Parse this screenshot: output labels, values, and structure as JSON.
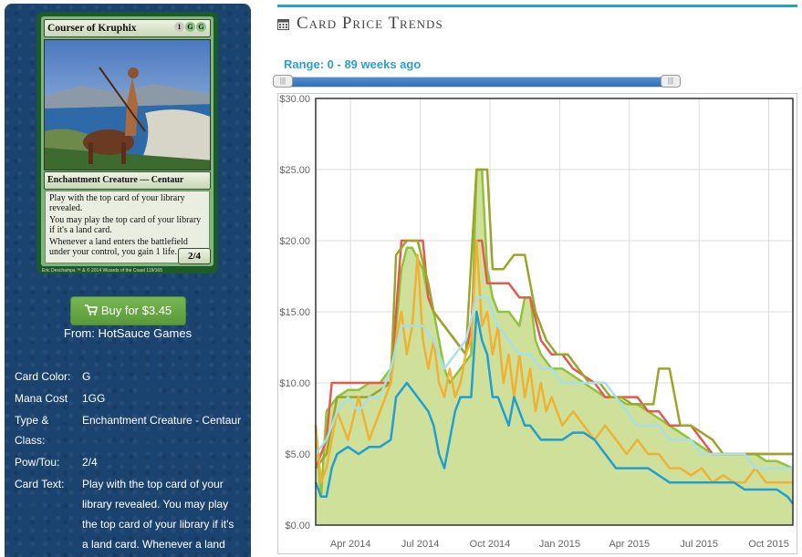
{
  "card": {
    "name": "Courser of Kruphix",
    "mana_symbols": [
      "1",
      "G",
      "G"
    ],
    "type_line": "Enchantment Creature — Centaur",
    "text_lines": [
      "Play with the top card of your library revealed.",
      "You may play the top card of your library if it's a land card.",
      "Whenever a land enters the battlefield under your control, you gain 1 life."
    ],
    "power_toughness": "2/4",
    "artist": "Eric Deschamps",
    "copyright": "™ & © 2014 Wizards of the Coast 119/165"
  },
  "buy": {
    "label": "Buy for $3.45",
    "vendor": "From: HotSauce Games"
  },
  "info": [
    {
      "label": "Card Color:",
      "value": "G"
    },
    {
      "label": "Mana Cost",
      "value": "1GG"
    },
    {
      "label": "Type & Class:",
      "value": "Enchantment Creature - Centaur"
    },
    {
      "label": "Pow/Tou:",
      "value": "2/4"
    },
    {
      "label": "Card Text:",
      "value": "Play with the top card of your library revealed. You may play the top card of your library if it's a land card. Whenever a land"
    }
  ],
  "section": {
    "title": "Card Price Trends",
    "icon": "calendar-icon"
  },
  "range": {
    "label": "Range: 0 - 89 weeks ago",
    "min_weeks": 0,
    "max_weeks": 89
  },
  "colors": {
    "panel_bg": "#1b4370",
    "accent": "#27a3c9",
    "range_text": "#2d9fd4",
    "button": "#6aa848",
    "area_fill": "#cfe09a"
  },
  "chart_data": {
    "type": "line",
    "title": "",
    "xlabel": "",
    "ylabel": "",
    "y_ticks": [
      "$0.00",
      "$5.00",
      "$10.00",
      "$15.00",
      "$20.00",
      "$25.00",
      "$30.00"
    ],
    "ylim": [
      0,
      30
    ],
    "x_ticks": [
      "Apr 2014",
      "Jul 2014",
      "Oct 2014",
      "Jan 2015",
      "Apr 2015",
      "Jul 2015",
      "Oct 2015"
    ],
    "x_tick_weeks": [
      4.5,
      17.5,
      30.5,
      43.5,
      56.5,
      69.5,
      82.5
    ],
    "xlim": [
      -2,
      87
    ],
    "grid": true,
    "series": [
      {
        "color": "#8fc33a",
        "fill": true,
        "points": [
          [
            -2,
            7
          ],
          [
            -1,
            2
          ],
          [
            0,
            8
          ],
          [
            2,
            9
          ],
          [
            4,
            9.5
          ],
          [
            6,
            9.5
          ],
          [
            8,
            10
          ],
          [
            10,
            10
          ],
          [
            12,
            11
          ],
          [
            13,
            14
          ],
          [
            14,
            18
          ],
          [
            15,
            19.5
          ],
          [
            16,
            19.5
          ],
          [
            18,
            18
          ],
          [
            19,
            16
          ],
          [
            20,
            15
          ],
          [
            21,
            13
          ],
          [
            22,
            11
          ],
          [
            23,
            10
          ],
          [
            24,
            10.5
          ],
          [
            25,
            11
          ],
          [
            26,
            11.5
          ],
          [
            27,
            12
          ],
          [
            28,
            25
          ],
          [
            29,
            25
          ],
          [
            30,
            18
          ],
          [
            31,
            16
          ],
          [
            32,
            15
          ],
          [
            34,
            15
          ],
          [
            36,
            14
          ],
          [
            37,
            16
          ],
          [
            38,
            16
          ],
          [
            39,
            13
          ],
          [
            40,
            12
          ],
          [
            42,
            11
          ],
          [
            44,
            11
          ],
          [
            46,
            10.5
          ],
          [
            48,
            10
          ],
          [
            50,
            9.5
          ],
          [
            52,
            9
          ],
          [
            54,
            9
          ],
          [
            56,
            8.5
          ],
          [
            58,
            8.5
          ],
          [
            60,
            8
          ],
          [
            62,
            7.5
          ],
          [
            64,
            7
          ],
          [
            66,
            6.5
          ],
          [
            68,
            6
          ],
          [
            70,
            5.5
          ],
          [
            72,
            5
          ],
          [
            74,
            5
          ],
          [
            76,
            5
          ],
          [
            78,
            5
          ],
          [
            80,
            5
          ],
          [
            82,
            4.5
          ],
          [
            84,
            4.5
          ],
          [
            87,
            4
          ]
        ]
      },
      {
        "color": "#e25b4f",
        "fill": false,
        "points": [
          [
            -2,
            4
          ],
          [
            0,
            6
          ],
          [
            1,
            10
          ],
          [
            4,
            10
          ],
          [
            8,
            10
          ],
          [
            12,
            10
          ],
          [
            14,
            20
          ],
          [
            16,
            20
          ],
          [
            18,
            20
          ],
          [
            19,
            16
          ],
          [
            20,
            15
          ],
          [
            22,
            14
          ],
          [
            24,
            13
          ],
          [
            26,
            12
          ],
          [
            27,
            14
          ],
          [
            28,
            20
          ],
          [
            29,
            20
          ],
          [
            30,
            17
          ],
          [
            32,
            17
          ],
          [
            34,
            17
          ],
          [
            36,
            16
          ],
          [
            38,
            16
          ],
          [
            40,
            13
          ],
          [
            42,
            12
          ],
          [
            44,
            12
          ],
          [
            46,
            11
          ],
          [
            48,
            10.5
          ],
          [
            50,
            10
          ],
          [
            52,
            9
          ],
          [
            56,
            9
          ],
          [
            58,
            9
          ],
          [
            60,
            8
          ],
          [
            62,
            8
          ],
          [
            64,
            7
          ],
          [
            66,
            7
          ],
          [
            68,
            7
          ],
          [
            70,
            6
          ],
          [
            72,
            5
          ],
          [
            74,
            5
          ],
          [
            76,
            5
          ],
          [
            78,
            5
          ],
          [
            80,
            5
          ],
          [
            82,
            5
          ],
          [
            84,
            5
          ],
          [
            87,
            5
          ]
        ]
      },
      {
        "color": "#9aa52a",
        "fill": false,
        "points": [
          [
            -2,
            4
          ],
          [
            0,
            5
          ],
          [
            2,
            9
          ],
          [
            4,
            9
          ],
          [
            8,
            9
          ],
          [
            12,
            10
          ],
          [
            13,
            19
          ],
          [
            15,
            20
          ],
          [
            17,
            20
          ],
          [
            19,
            17
          ],
          [
            20,
            15
          ],
          [
            22,
            14
          ],
          [
            24,
            13
          ],
          [
            26,
            12
          ],
          [
            28,
            25
          ],
          [
            30,
            25
          ],
          [
            31,
            18
          ],
          [
            33,
            18
          ],
          [
            35,
            19
          ],
          [
            37,
            19
          ],
          [
            39,
            15
          ],
          [
            41,
            13
          ],
          [
            43,
            12
          ],
          [
            45,
            12
          ],
          [
            47,
            11
          ],
          [
            49,
            10
          ],
          [
            51,
            10
          ],
          [
            53,
            9
          ],
          [
            55,
            9
          ],
          [
            57,
            8.5
          ],
          [
            59,
            8.5
          ],
          [
            61,
            8.5
          ],
          [
            62,
            11
          ],
          [
            64,
            11
          ],
          [
            66,
            7
          ],
          [
            68,
            7
          ],
          [
            70,
            6.5
          ],
          [
            72,
            6
          ],
          [
            74,
            5
          ],
          [
            76,
            5
          ],
          [
            78,
            5
          ],
          [
            80,
            5
          ],
          [
            82,
            5
          ],
          [
            84,
            5
          ],
          [
            87,
            5
          ]
        ]
      },
      {
        "color": "#f0b233",
        "fill": false,
        "points": [
          [
            -2,
            7
          ],
          [
            -1,
            3
          ],
          [
            0,
            4
          ],
          [
            2,
            8
          ],
          [
            4,
            6
          ],
          [
            6,
            9
          ],
          [
            8,
            6
          ],
          [
            10,
            8
          ],
          [
            12,
            10
          ],
          [
            13,
            13
          ],
          [
            14,
            15
          ],
          [
            15,
            12
          ],
          [
            16,
            14
          ],
          [
            17,
            19
          ],
          [
            18,
            13
          ],
          [
            19,
            11
          ],
          [
            20,
            13
          ],
          [
            21,
            10
          ],
          [
            22,
            9
          ],
          [
            23,
            11
          ],
          [
            24,
            9
          ],
          [
            25,
            10
          ],
          [
            26,
            12
          ],
          [
            27,
            13
          ],
          [
            28,
            20
          ],
          [
            29,
            14
          ],
          [
            30,
            15
          ],
          [
            31,
            12
          ],
          [
            32,
            14
          ],
          [
            33,
            10
          ],
          [
            34,
            12
          ],
          [
            35,
            9
          ],
          [
            36,
            12
          ],
          [
            37,
            9
          ],
          [
            38,
            11
          ],
          [
            39,
            8
          ],
          [
            40,
            10
          ],
          [
            41,
            8
          ],
          [
            42,
            9
          ],
          [
            44,
            7
          ],
          [
            46,
            8
          ],
          [
            48,
            7
          ],
          [
            50,
            6
          ],
          [
            52,
            7
          ],
          [
            54,
            6
          ],
          [
            56,
            5
          ],
          [
            58,
            6
          ],
          [
            60,
            5
          ],
          [
            62,
            5
          ],
          [
            64,
            4
          ],
          [
            66,
            4
          ],
          [
            68,
            3.5
          ],
          [
            70,
            4
          ],
          [
            72,
            3
          ],
          [
            74,
            3.5
          ],
          [
            76,
            3
          ],
          [
            78,
            3
          ],
          [
            80,
            4
          ],
          [
            82,
            3
          ],
          [
            84,
            3
          ],
          [
            87,
            3
          ]
        ]
      },
      {
        "color": "#a8e0e6",
        "fill": false,
        "points": [
          [
            -2,
            5
          ],
          [
            0,
            6
          ],
          [
            2,
            8
          ],
          [
            4,
            9
          ],
          [
            6,
            8
          ],
          [
            8,
            9
          ],
          [
            10,
            9
          ],
          [
            12,
            11
          ],
          [
            14,
            14
          ],
          [
            16,
            14
          ],
          [
            18,
            14
          ],
          [
            20,
            13
          ],
          [
            22,
            11
          ],
          [
            24,
            12
          ],
          [
            26,
            13
          ],
          [
            28,
            16
          ],
          [
            30,
            16
          ],
          [
            32,
            14
          ],
          [
            34,
            13
          ],
          [
            36,
            12
          ],
          [
            38,
            12
          ],
          [
            40,
            11
          ],
          [
            42,
            11
          ],
          [
            44,
            10
          ],
          [
            46,
            10
          ],
          [
            48,
            10
          ],
          [
            50,
            10
          ],
          [
            52,
            10
          ],
          [
            54,
            9
          ],
          [
            56,
            8
          ],
          [
            58,
            7
          ],
          [
            60,
            7
          ],
          [
            62,
            7
          ],
          [
            64,
            6
          ],
          [
            66,
            6
          ],
          [
            68,
            6
          ],
          [
            70,
            5
          ],
          [
            72,
            5
          ],
          [
            74,
            5
          ],
          [
            76,
            5
          ],
          [
            78,
            5
          ],
          [
            80,
            4
          ],
          [
            82,
            4
          ],
          [
            84,
            4
          ],
          [
            87,
            4
          ]
        ]
      },
      {
        "color": "#1f9fd2",
        "fill": false,
        "points": [
          [
            -2,
            3
          ],
          [
            -1,
            2
          ],
          [
            0,
            2
          ],
          [
            1,
            4
          ],
          [
            2,
            5
          ],
          [
            4,
            5.5
          ],
          [
            6,
            5
          ],
          [
            8,
            5.5
          ],
          [
            10,
            5.5
          ],
          [
            12,
            6
          ],
          [
            13,
            9
          ],
          [
            15,
            10
          ],
          [
            17,
            9
          ],
          [
            19,
            8
          ],
          [
            20,
            7
          ],
          [
            21,
            5
          ],
          [
            22,
            4
          ],
          [
            23,
            6
          ],
          [
            24,
            8
          ],
          [
            25,
            9
          ],
          [
            26,
            9
          ],
          [
            27,
            9
          ],
          [
            28,
            15
          ],
          [
            29,
            13
          ],
          [
            30,
            12
          ],
          [
            31,
            9
          ],
          [
            32,
            9
          ],
          [
            33,
            8
          ],
          [
            34,
            7
          ],
          [
            35,
            9
          ],
          [
            36,
            8
          ],
          [
            37,
            7
          ],
          [
            38,
            7
          ],
          [
            40,
            6
          ],
          [
            42,
            6
          ],
          [
            44,
            6
          ],
          [
            46,
            6.5
          ],
          [
            48,
            6.5
          ],
          [
            50,
            6
          ],
          [
            52,
            5
          ],
          [
            54,
            4
          ],
          [
            56,
            4
          ],
          [
            58,
            4
          ],
          [
            60,
            4
          ],
          [
            62,
            3.5
          ],
          [
            64,
            3
          ],
          [
            66,
            3
          ],
          [
            68,
            3
          ],
          [
            70,
            3
          ],
          [
            72,
            3
          ],
          [
            74,
            3
          ],
          [
            76,
            3
          ],
          [
            78,
            2.5
          ],
          [
            80,
            2.5
          ],
          [
            82,
            2.5
          ],
          [
            84,
            2.5
          ],
          [
            86,
            2
          ],
          [
            87,
            1.5
          ]
        ]
      }
    ]
  }
}
